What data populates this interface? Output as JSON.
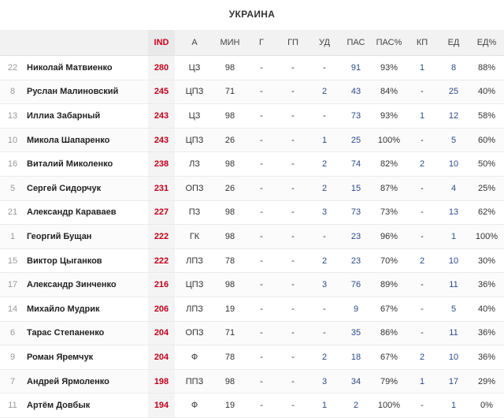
{
  "title": "УКРАИНА",
  "columns": [
    "",
    "",
    "IND",
    "А",
    "МИН",
    "Г",
    "ГП",
    "УД",
    "ПАС",
    "ПАС%",
    "КП",
    "ЕД",
    "ЕД%"
  ],
  "rows": [
    [
      "22",
      "Николай Матвиенко",
      "280",
      "ЦЗ",
      "98",
      "-",
      "-",
      "-",
      "91",
      "93%",
      "1",
      "8",
      "88%"
    ],
    [
      "8",
      "Руслан Малиновский",
      "245",
      "ЦПЗ",
      "71",
      "-",
      "-",
      "2",
      "43",
      "84%",
      "-",
      "25",
      "40%"
    ],
    [
      "13",
      "Иллиа Забарный",
      "243",
      "ЦЗ",
      "98",
      "-",
      "-",
      "-",
      "73",
      "93%",
      "1",
      "12",
      "58%"
    ],
    [
      "10",
      "Микола Шапаренко",
      "243",
      "ЦПЗ",
      "26",
      "-",
      "-",
      "1",
      "25",
      "100%",
      "-",
      "5",
      "60%"
    ],
    [
      "16",
      "Виталий Миколенко",
      "238",
      "ЛЗ",
      "98",
      "-",
      "-",
      "2",
      "74",
      "82%",
      "2",
      "10",
      "50%"
    ],
    [
      "5",
      "Сергей Сидорчук",
      "231",
      "ОПЗ",
      "26",
      "-",
      "-",
      "2",
      "15",
      "87%",
      "-",
      "4",
      "25%"
    ],
    [
      "21",
      "Александр Караваев",
      "227",
      "ПЗ",
      "98",
      "-",
      "-",
      "3",
      "73",
      "73%",
      "-",
      "13",
      "62%"
    ],
    [
      "1",
      "Георгий Бущан",
      "222",
      "ГК",
      "98",
      "-",
      "-",
      "-",
      "23",
      "96%",
      "-",
      "1",
      "100%"
    ],
    [
      "15",
      "Виктор Цыганков",
      "222",
      "ЛПЗ",
      "78",
      "-",
      "-",
      "2",
      "23",
      "70%",
      "2",
      "10",
      "30%"
    ],
    [
      "17",
      "Александр Зинченко",
      "216",
      "ЦПЗ",
      "98",
      "-",
      "-",
      "3",
      "76",
      "89%",
      "-",
      "11",
      "36%"
    ],
    [
      "14",
      "Михайло Мудрик",
      "206",
      "ЛПЗ",
      "19",
      "-",
      "-",
      "-",
      "9",
      "67%",
      "-",
      "5",
      "40%"
    ],
    [
      "6",
      "Тарас Степаненко",
      "204",
      "ОПЗ",
      "71",
      "-",
      "-",
      "-",
      "35",
      "86%",
      "-",
      "11",
      "36%"
    ],
    [
      "9",
      "Роман Яремчук",
      "204",
      "Ф",
      "78",
      "-",
      "-",
      "2",
      "18",
      "67%",
      "2",
      "10",
      "36%"
    ],
    [
      "7",
      "Андрей Ярмоленко",
      "198",
      "ППЗ",
      "98",
      "-",
      "-",
      "3",
      "34",
      "79%",
      "1",
      "17",
      "29%"
    ],
    [
      "11",
      "Артём Довбык",
      "194",
      "Ф",
      "19",
      "-",
      "-",
      "1",
      "2",
      "100%",
      "-",
      "1",
      "0%"
    ]
  ]
}
